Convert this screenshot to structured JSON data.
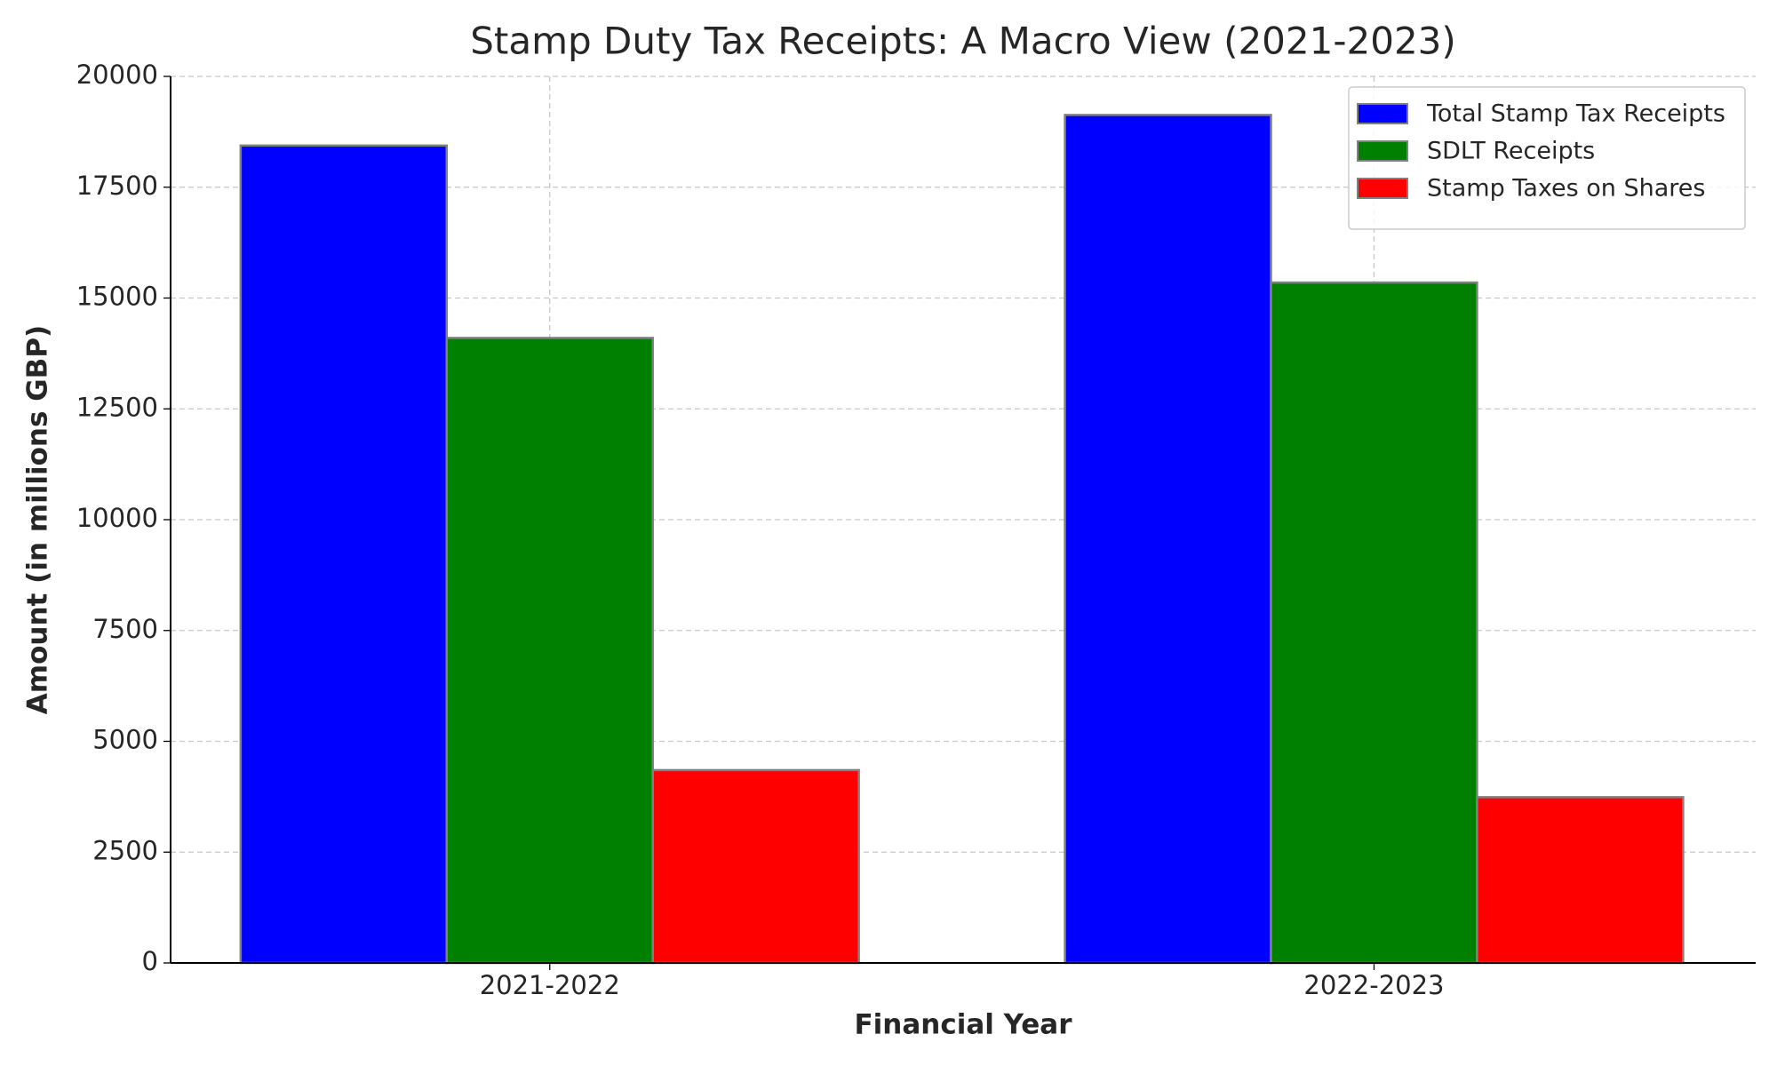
{
  "chart_data": {
    "type": "bar",
    "title": "Stamp Duty Tax Receipts: A Macro View (2021-2023)",
    "x_label": "Financial Year",
    "y_label": "Amount (in millions GBP)",
    "categories": [
      "2021-2022",
      "2022-2023"
    ],
    "series": [
      {
        "name": "Total Stamp Tax Receipts",
        "color": "#0000ff",
        "values": [
          18440,
          19130
        ]
      },
      {
        "name": "SDLT Receipts",
        "color": "#008000",
        "values": [
          14100,
          15350
        ]
      },
      {
        "name": "Stamp Taxes on Shares",
        "color": "#ff0000",
        "values": [
          4350,
          3740
        ]
      }
    ],
    "ylim": [
      0,
      20000
    ],
    "yticks": [
      0,
      2500,
      5000,
      7500,
      10000,
      12500,
      15000,
      17500,
      20000
    ],
    "grid": true,
    "legend": "upper right"
  }
}
